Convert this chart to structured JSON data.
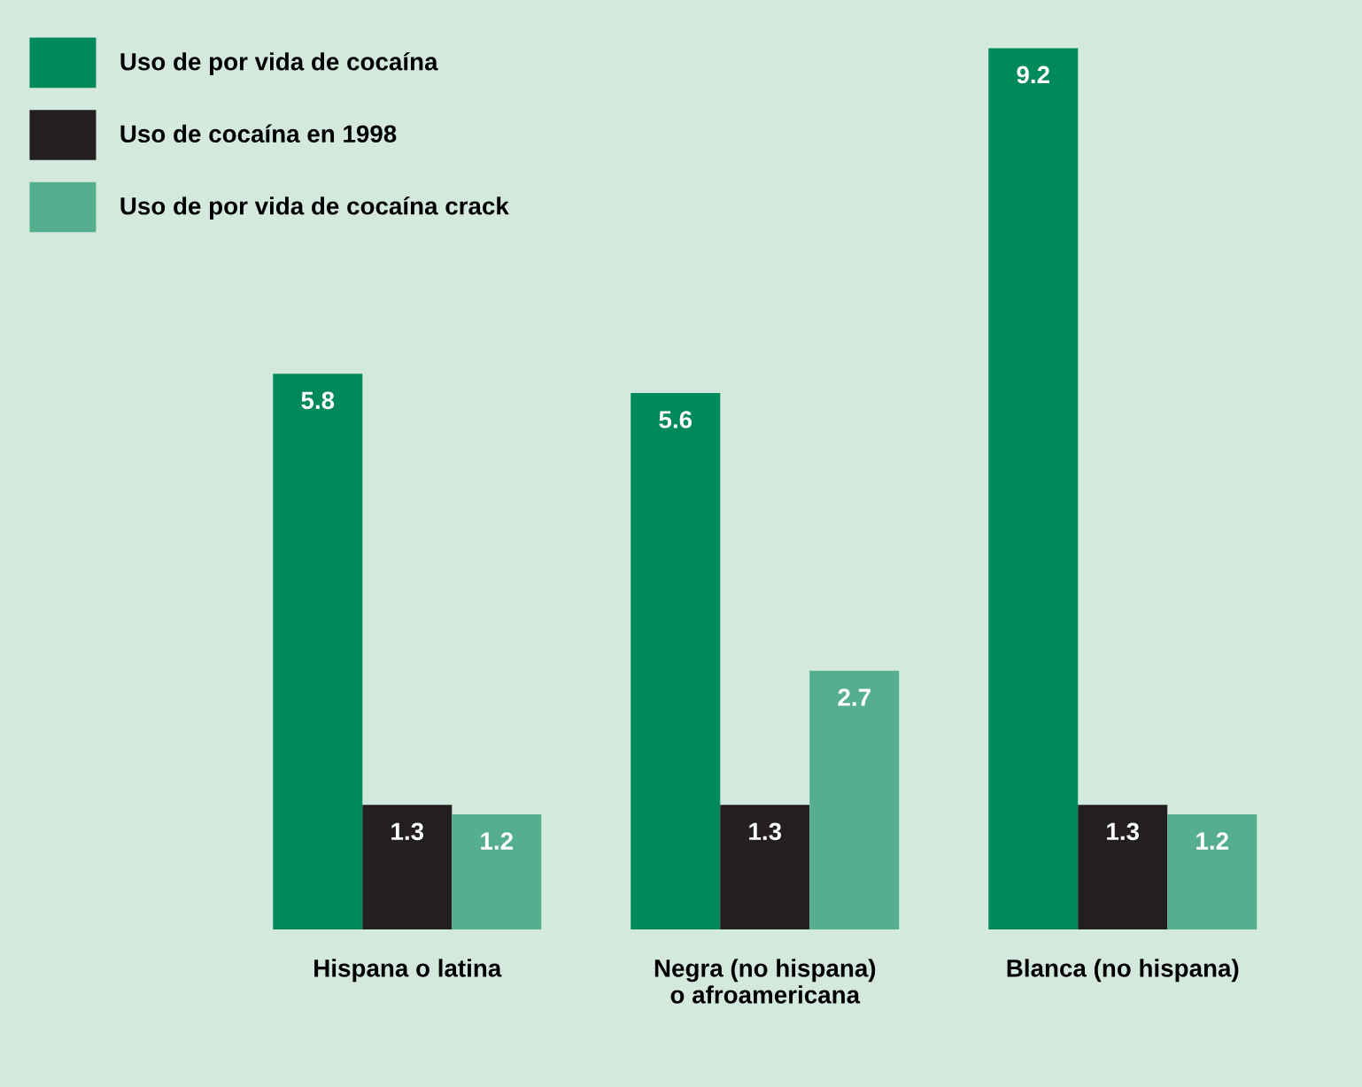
{
  "chart_data": {
    "type": "bar",
    "categories": [
      "Hispana o latina",
      "Negra (no hispana)\no afroamericana",
      "Blanca (no hispana)"
    ],
    "series": [
      {
        "name": "Uso de por vida de cocaína",
        "color": "#00895a",
        "values": [
          5.8,
          5.6,
          9.2
        ]
      },
      {
        "name": "Uso de cocaína en 1998",
        "color": "#231f20",
        "values": [
          1.3,
          1.3,
          1.3
        ]
      },
      {
        "name": "Uso de por vida de cocaína crack",
        "color": "#55ae8e",
        "values": [
          1.2,
          2.7,
          1.2
        ]
      }
    ],
    "data_labels": true,
    "legend": "top left",
    "grid": false
  }
}
